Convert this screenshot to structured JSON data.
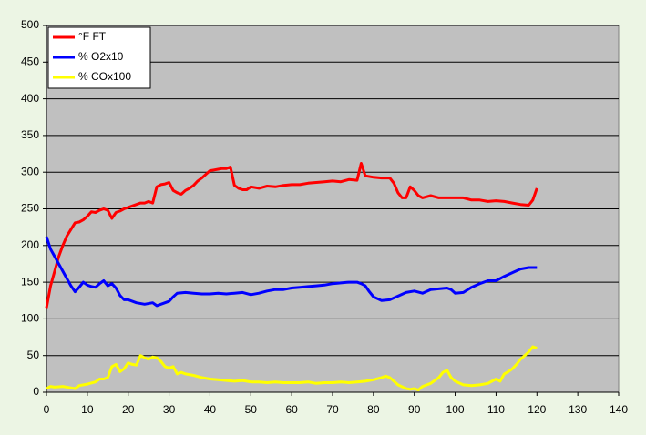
{
  "chart_data": {
    "type": "line",
    "xlim": [
      0,
      140
    ],
    "xticks": [
      0,
      10,
      20,
      30,
      40,
      50,
      60,
      70,
      80,
      90,
      100,
      110,
      120,
      130,
      140
    ],
    "ylim": [
      0,
      500
    ],
    "yticks": [
      0,
      50,
      100,
      150,
      200,
      250,
      300,
      350,
      400,
      450,
      500
    ],
    "grid": true,
    "legend": "top-left",
    "series": [
      {
        "name": "°F FT",
        "color": "#ff0000",
        "x": [
          0,
          1,
          2,
          3,
          4,
          5,
          6,
          7,
          8,
          9,
          10,
          11,
          12,
          13,
          14,
          15,
          16,
          17,
          18,
          19,
          20,
          21,
          22,
          23,
          24,
          25,
          26,
          27,
          28,
          29,
          30,
          31,
          32,
          33,
          34,
          35,
          36,
          37,
          38,
          39,
          40,
          41,
          42,
          43,
          44,
          45,
          46,
          47,
          48,
          49,
          50,
          52,
          54,
          56,
          58,
          60,
          62,
          64,
          66,
          68,
          70,
          72,
          74,
          76,
          77,
          78,
          80,
          82,
          84,
          85,
          86,
          87,
          88,
          89,
          90,
          91,
          92,
          94,
          96,
          98,
          100,
          102,
          104,
          106,
          108,
          110,
          112,
          114,
          116,
          118,
          119,
          120
        ],
        "values": [
          115,
          145,
          165,
          185,
          200,
          213,
          222,
          231,
          232,
          235,
          240,
          246,
          245,
          248,
          250,
          248,
          237,
          245,
          247,
          250,
          252,
          254,
          256,
          258,
          258,
          260,
          258,
          280,
          283,
          284,
          286,
          275,
          272,
          270,
          275,
          278,
          282,
          288,
          292,
          297,
          302,
          303,
          304,
          305,
          305,
          307,
          282,
          278,
          276,
          276,
          280,
          278,
          281,
          280,
          282,
          283,
          283,
          285,
          286,
          287,
          288,
          287,
          290,
          289,
          312,
          295,
          293,
          292,
          292,
          285,
          272,
          265,
          265,
          280,
          275,
          268,
          265,
          268,
          265,
          265,
          265,
          265,
          262,
          262,
          260,
          261,
          260,
          258,
          256,
          255,
          262,
          278
        ]
      },
      {
        "name": "% O2x10",
        "color": "#0000ff",
        "x": [
          0,
          1,
          2,
          3,
          4,
          5,
          6,
          7,
          8,
          9,
          10,
          11,
          12,
          13,
          14,
          15,
          16,
          17,
          18,
          19,
          20,
          22,
          24,
          26,
          27,
          28,
          30,
          31,
          32,
          34,
          36,
          38,
          40,
          42,
          44,
          46,
          48,
          50,
          52,
          54,
          56,
          58,
          60,
          62,
          64,
          66,
          68,
          70,
          72,
          74,
          76,
          77,
          78,
          79,
          80,
          82,
          84,
          86,
          88,
          90,
          92,
          94,
          96,
          98,
          99,
          100,
          102,
          104,
          106,
          108,
          110,
          112,
          114,
          116,
          118,
          120
        ],
        "values": [
          212,
          195,
          185,
          175,
          165,
          155,
          145,
          137,
          143,
          150,
          146,
          144,
          143,
          148,
          152,
          145,
          148,
          142,
          132,
          126,
          126,
          122,
          120,
          122,
          118,
          120,
          124,
          130,
          135,
          136,
          135,
          134,
          134,
          135,
          134,
          135,
          136,
          133,
          135,
          138,
          140,
          140,
          142,
          143,
          144,
          145,
          146,
          148,
          149,
          150,
          150,
          148,
          145,
          137,
          130,
          125,
          126,
          131,
          136,
          138,
          135,
          140,
          141,
          142,
          140,
          135,
          136,
          143,
          148,
          152,
          152,
          158,
          163,
          168,
          170,
          170
        ]
      },
      {
        "name": "% COx100",
        "color": "#ffff00",
        "x": [
          0,
          1,
          2,
          4,
          6,
          7,
          8,
          10,
          12,
          13,
          14,
          15,
          16,
          17,
          18,
          19,
          20,
          21,
          22,
          23,
          24,
          25,
          26,
          27,
          28,
          29,
          30,
          31,
          32,
          33,
          34,
          36,
          38,
          40,
          42,
          44,
          46,
          48,
          50,
          52,
          54,
          56,
          58,
          60,
          62,
          64,
          66,
          68,
          70,
          72,
          74,
          76,
          78,
          80,
          82,
          83,
          84,
          86,
          88,
          89,
          90,
          91,
          92,
          94,
          96,
          97,
          98,
          99,
          100,
          102,
          104,
          106,
          108,
          110,
          111,
          112,
          113,
          114,
          115,
          116,
          118,
          119,
          120
        ],
        "values": [
          5,
          8,
          7,
          8,
          6,
          5,
          9,
          11,
          14,
          18,
          18,
          20,
          35,
          38,
          28,
          32,
          40,
          38,
          37,
          50,
          47,
          45,
          48,
          47,
          42,
          35,
          33,
          35,
          25,
          27,
          25,
          23,
          20,
          18,
          17,
          16,
          15,
          16,
          14,
          14,
          13,
          14,
          13,
          13,
          13,
          14,
          12,
          13,
          13,
          14,
          13,
          14,
          15,
          17,
          20,
          22,
          20,
          10,
          5,
          4,
          5,
          3,
          8,
          12,
          20,
          27,
          30,
          20,
          15,
          10,
          9,
          10,
          12,
          18,
          15,
          25,
          28,
          32,
          38,
          45,
          55,
          62,
          60
        ]
      }
    ]
  }
}
